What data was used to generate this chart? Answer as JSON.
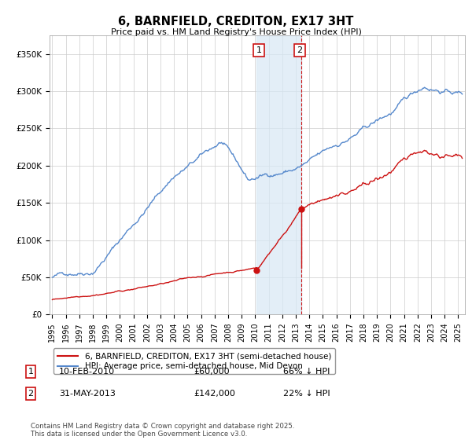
{
  "title": "6, BARNFIELD, CREDITON, EX17 3HT",
  "subtitle": "Price paid vs. HM Land Registry's House Price Index (HPI)",
  "ylabel_ticks": [
    "£0",
    "£50K",
    "£100K",
    "£150K",
    "£200K",
    "£250K",
    "£300K",
    "£350K"
  ],
  "ytick_values": [
    0,
    50000,
    100000,
    150000,
    200000,
    250000,
    300000,
    350000
  ],
  "ylim": [
    0,
    375000
  ],
  "xlim_start": 1994.8,
  "xlim_end": 2025.5,
  "hpi_color": "#5588cc",
  "price_color": "#cc1111",
  "transaction1_date": 2010.12,
  "transaction1_price": 60000,
  "transaction1_label": "1",
  "transaction2_date": 2013.42,
  "transaction2_price": 142000,
  "transaction2_label": "2",
  "span_color": "#d8e8f5",
  "span_alpha": 0.7,
  "legend_property": "6, BARNFIELD, CREDITON, EX17 3HT (semi-detached house)",
  "legend_hpi": "HPI: Average price, semi-detached house, Mid Devon",
  "footnote": "Contains HM Land Registry data © Crown copyright and database right 2025.\nThis data is licensed under the Open Government Licence v3.0.",
  "background_color": "#ffffff",
  "grid_color": "#cccccc"
}
